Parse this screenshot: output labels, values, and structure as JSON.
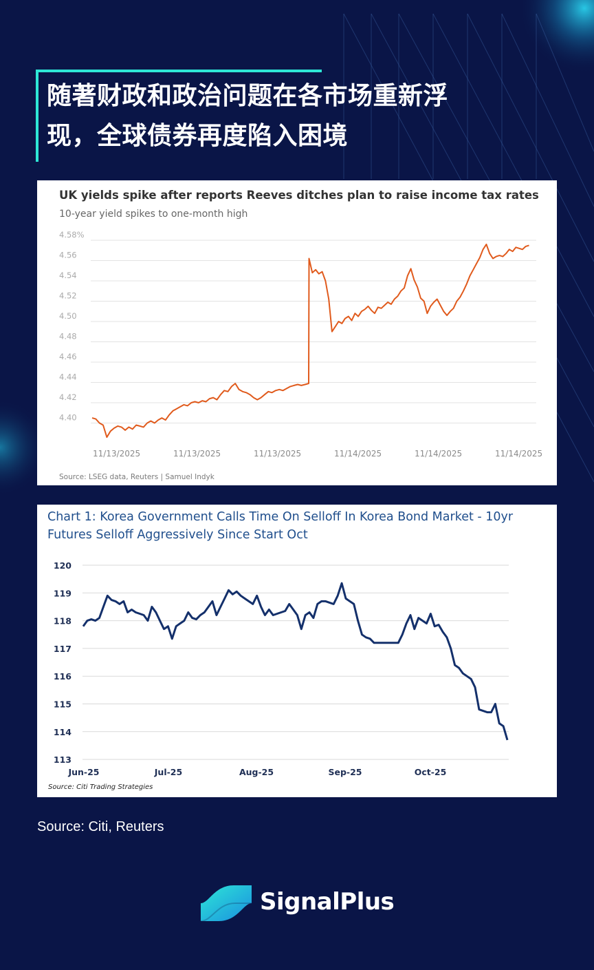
{
  "headline": {
    "line1": "随著财政和政治问题在各市场重新浮",
    "line2": "现，全球债券再度陷入困境"
  },
  "footer": {
    "source": "Source: Citi, Reuters"
  },
  "brand": {
    "name": "SignalPlus",
    "logo_icon": "wave-logo-icon"
  },
  "colors": {
    "background": "#0a1547",
    "accent": "#2ee6d6",
    "uk_line": "#e05a1c",
    "korea_line": "#14306b",
    "korea_title": "#1f4e8c"
  },
  "chart_data": [
    {
      "type": "line",
      "title": "UK yields spike after reports Reeves ditches plan to raise income tax rates",
      "subtitle": "10-year yield spikes to one-month high",
      "source": "Source: LSEG data, Reuters | Samuel Indyk",
      "y_ticks": [
        "4.58%",
        "4.56",
        "4.54",
        "4.52",
        "4.50",
        "4.48",
        "4.46",
        "4.44",
        "4.42",
        "4.40"
      ],
      "x_ticks": [
        "11/13/2025",
        "11/13/2025",
        "11/13/2025",
        "11/14/2025",
        "11/14/2025",
        "11/14/2025"
      ],
      "ylim": [
        4.387,
        4.582
      ],
      "grid": true,
      "series": [
        {
          "values": [
            4.405,
            4.404,
            4.4,
            4.398,
            4.386,
            4.392,
            4.395,
            4.397,
            4.396,
            4.393,
            4.396,
            4.394,
            4.398,
            4.397,
            4.396,
            4.4,
            4.402,
            4.4,
            4.403,
            4.405,
            4.403,
            4.408,
            4.412,
            4.414,
            4.416,
            4.418,
            4.417,
            4.42,
            4.421,
            4.42,
            4.422,
            4.421,
            4.424,
            4.425,
            4.423,
            4.428,
            4.432,
            4.431,
            4.436,
            4.439,
            4.433,
            4.431,
            4.43,
            4.428,
            4.425,
            4.423,
            4.425,
            4.428,
            4.431,
            4.43,
            4.432,
            4.433,
            4.432,
            4.434,
            4.436,
            4.437,
            4.438,
            4.437,
            4.438,
            4.439,
            4.562,
            4.548,
            4.551,
            4.547,
            4.549,
            4.54,
            4.522,
            4.49,
            4.495,
            4.5,
            4.498,
            4.503,
            4.505,
            4.501,
            4.508,
            4.505,
            4.51,
            4.512,
            4.515,
            4.511,
            4.508,
            4.514,
            4.513,
            4.516,
            4.519,
            4.517,
            4.522,
            4.525,
            4.53,
            4.533,
            4.545,
            4.552,
            4.541,
            4.534,
            4.523,
            4.52,
            4.508,
            4.515,
            4.519,
            4.522,
            4.516,
            4.51,
            4.506,
            4.51,
            4.513,
            4.52,
            4.524,
            4.53,
            4.537,
            4.545,
            4.551,
            4.557,
            4.563,
            4.571,
            4.576,
            4.567,
            4.562,
            4.564,
            4.565,
            4.564,
            4.567,
            4.571,
            4.569,
            4.573,
            4.572,
            4.571,
            4.574,
            4.575
          ]
        }
      ]
    },
    {
      "type": "line",
      "title": "Chart 1: Korea Government Calls Time On Selloff In Korea Bond Market - 10yr Futures Selloff Aggressively Since Start Oct",
      "source": "Source: Citi Trading Strategies",
      "x_ticks": [
        "Jun-25",
        "Jul-25",
        "Aug-25",
        "Sep-25",
        "Oct-25"
      ],
      "y_ticks": [
        "120",
        "119",
        "118",
        "117",
        "116",
        "115",
        "114",
        "113"
      ],
      "ylim": [
        113,
        120
      ],
      "grid": true,
      "series": [
        {
          "values": [
            117.8,
            118.0,
            118.05,
            118.0,
            118.1,
            118.5,
            118.9,
            118.75,
            118.7,
            118.6,
            118.7,
            118.3,
            118.4,
            118.3,
            118.25,
            118.2,
            118.0,
            118.5,
            118.3,
            118.0,
            117.7,
            117.8,
            117.35,
            117.8,
            117.9,
            118.0,
            118.3,
            118.1,
            118.05,
            118.2,
            118.3,
            118.5,
            118.7,
            118.2,
            118.5,
            118.8,
            119.1,
            118.95,
            119.05,
            118.9,
            118.8,
            118.7,
            118.6,
            118.9,
            118.5,
            118.2,
            118.4,
            118.2,
            118.25,
            118.3,
            118.35,
            118.6,
            118.4,
            118.2,
            117.7,
            118.2,
            118.3,
            118.1,
            118.6,
            118.7,
            118.7,
            118.65,
            118.6,
            118.9,
            119.35,
            118.8,
            118.7,
            118.6,
            118.0,
            117.5,
            117.4,
            117.35,
            117.2,
            117.2,
            117.2,
            117.2,
            117.2,
            117.2,
            117.2,
            117.5,
            117.9,
            118.2,
            117.7,
            118.1,
            118.0,
            117.9,
            118.25,
            117.8,
            117.85,
            117.6,
            117.4,
            117.0,
            116.4,
            116.3,
            116.1,
            116.0,
            115.9,
            115.6,
            114.8,
            114.75,
            114.7,
            114.7,
            115.0,
            114.3,
            114.2,
            113.7
          ]
        }
      ]
    }
  ]
}
